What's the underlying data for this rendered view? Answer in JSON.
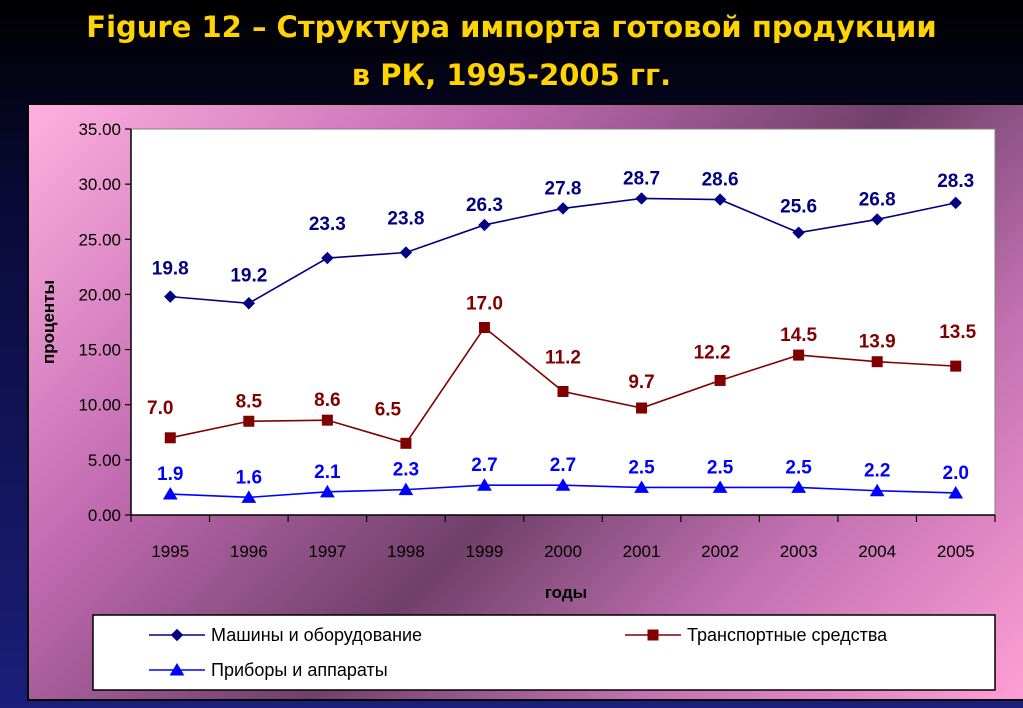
{
  "title_line1": "Figure 12 – Структура импорта готовой продукции",
  "title_line2": "в РК, 1995-2005   гг.",
  "chart_data": {
    "type": "line",
    "title": "Figure 12 – Структура импорта готовой продукции в РК, 1995-2005   гг.",
    "xlabel": "годы",
    "ylabel": "проценты",
    "ylim": [
      0,
      35
    ],
    "ytick_labels": [
      "0.00",
      "5.00",
      "10.00",
      "15.00",
      "20.00",
      "25.00",
      "30.00",
      "35.00"
    ],
    "ytick_values": [
      0,
      5,
      10,
      15,
      20,
      25,
      30,
      35
    ],
    "categories": [
      "1995",
      "1996",
      "1997",
      "1998",
      "1999",
      "2000",
      "2001",
      "2002",
      "2003",
      "2004",
      "2005"
    ],
    "grid": false,
    "legend_position": "bottom",
    "series": [
      {
        "name": "Машины и оборудование",
        "marker": "diamond",
        "color": "#000080",
        "values": [
          19.8,
          19.2,
          23.3,
          23.8,
          26.3,
          27.8,
          28.7,
          28.6,
          25.6,
          26.8,
          28.3
        ],
        "labels": [
          "19.8",
          "19.2",
          "23.3",
          "23.8",
          "26.3",
          "27.8",
          "28.7",
          "28.6",
          "25.6",
          "26.8",
          "28.3"
        ]
      },
      {
        "name": "Транспортные средства",
        "marker": "square",
        "color": "#800000",
        "values": [
          7.0,
          8.5,
          8.6,
          6.5,
          17.0,
          11.2,
          9.7,
          12.2,
          14.5,
          13.9,
          13.5
        ],
        "labels": [
          "7.0",
          "8.5",
          "8.6",
          "6.5",
          "17.0",
          "11.2",
          "9.7",
          "12.2",
          "14.5",
          "13.9",
          "13.5"
        ]
      },
      {
        "name": "Приборы и аппараты",
        "marker": "triangle",
        "color": "#0000ff",
        "values": [
          1.9,
          1.6,
          2.1,
          2.3,
          2.7,
          2.7,
          2.5,
          2.5,
          2.5,
          2.2,
          2.0
        ],
        "labels": [
          "1.9",
          "1.6",
          "2.1",
          "2.3",
          "2.7",
          "2.7",
          "2.5",
          "2.5",
          "2.5",
          "2.2",
          "2.0"
        ]
      }
    ]
  }
}
